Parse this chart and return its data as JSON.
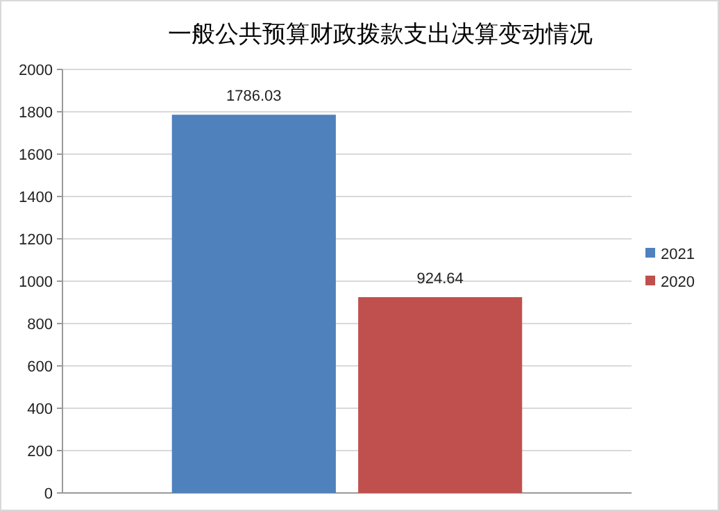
{
  "chart_data": {
    "type": "bar",
    "title": "一般公共预算财政拨款支出决算变动情况",
    "categories": [
      null
    ],
    "series": [
      {
        "name": "2021",
        "color": "#4f81bd",
        "values": [
          1786.03
        ]
      },
      {
        "name": "2020",
        "color": "#c0504d",
        "values": [
          924.64
        ]
      }
    ],
    "ylim": [
      0,
      2000
    ],
    "yticks": [
      0,
      200,
      400,
      600,
      800,
      1000,
      1200,
      1400,
      1600,
      1800,
      2000
    ],
    "grid": "y",
    "legend": "right",
    "data_labels": true
  }
}
